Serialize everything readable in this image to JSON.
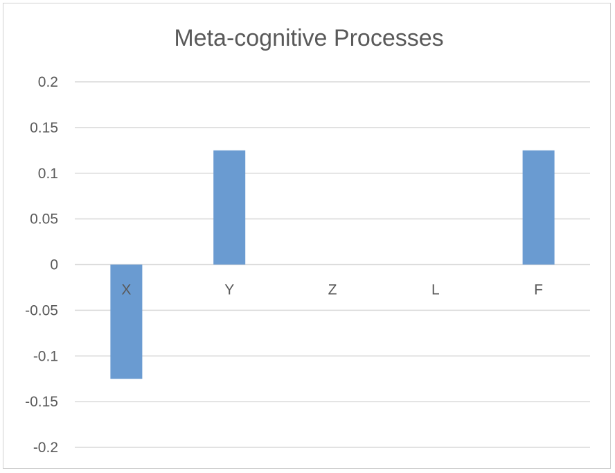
{
  "chart_data": {
    "type": "bar",
    "title": "Meta-cognitive Processes",
    "xlabel": "",
    "ylabel": "",
    "categories": [
      "X",
      "Y",
      "Z",
      "L",
      "F"
    ],
    "values": [
      -0.125,
      0.125,
      0,
      0,
      0.125
    ],
    "ylim": [
      -0.2,
      0.2
    ],
    "ytick_labels": [
      "0.2",
      "0.15",
      "0.1",
      "0.05",
      "0",
      "-0.05",
      "-0.1",
      "-0.15",
      "-0.2"
    ],
    "grid": true,
    "legend": "none",
    "bar_color": "#6a9bd1"
  }
}
